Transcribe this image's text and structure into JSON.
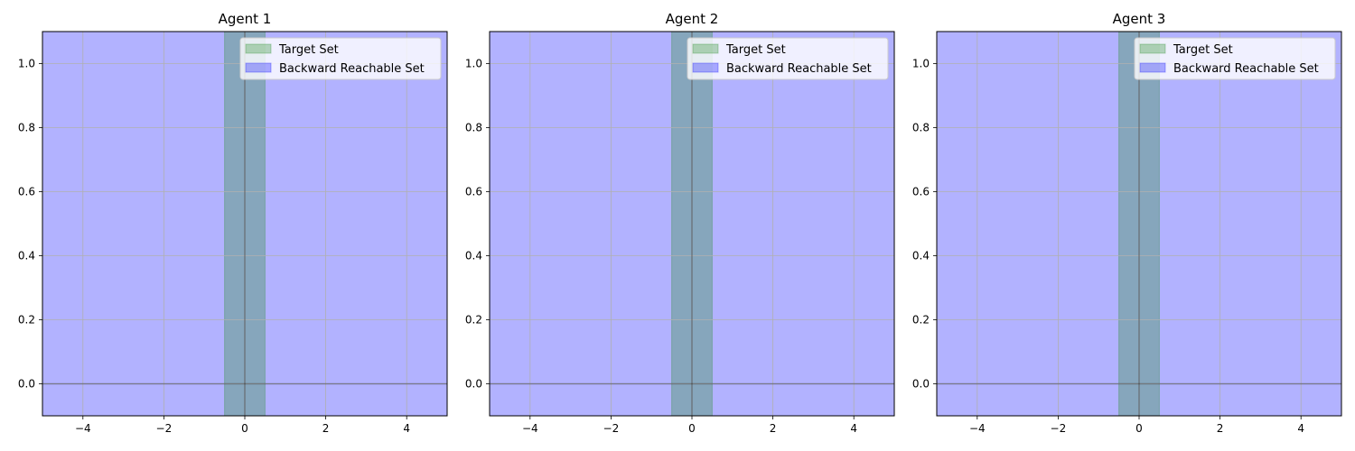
{
  "chart_data": [
    {
      "type": "area",
      "title": "Agent 1",
      "xlabel": "",
      "ylabel": "",
      "xlim": [
        -5,
        5
      ],
      "ylim": [
        -0.1,
        1.1
      ],
      "xticks": [
        -4,
        -2,
        0,
        2,
        4
      ],
      "xtick_labels": [
        "−4",
        "−2",
        "0",
        "2",
        "4"
      ],
      "yticks": [
        0.0,
        0.2,
        0.4,
        0.6,
        0.8,
        1.0
      ],
      "ytick_labels": [
        "0.0",
        "0.2",
        "0.4",
        "0.6",
        "0.8",
        "1.0"
      ],
      "grid": true,
      "reference_lines": {
        "x": 0,
        "y": 0
      },
      "legend_position": "top-right",
      "series": [
        {
          "name": "Target Set",
          "color": "#228b22",
          "x_range": [
            -0.5,
            0.5
          ],
          "y_range": [
            -0.1,
            1.1
          ]
        },
        {
          "name": "Backward Reachable Set",
          "color": "#0000ff",
          "x_range": [
            -5,
            5
          ],
          "y_range": [
            -0.1,
            1.1
          ]
        }
      ]
    },
    {
      "type": "area",
      "title": "Agent 2",
      "xlabel": "",
      "ylabel": "",
      "xlim": [
        -5,
        5
      ],
      "ylim": [
        -0.1,
        1.1
      ],
      "xticks": [
        -4,
        -2,
        0,
        2,
        4
      ],
      "xtick_labels": [
        "−4",
        "−2",
        "0",
        "2",
        "4"
      ],
      "yticks": [
        0.0,
        0.2,
        0.4,
        0.6,
        0.8,
        1.0
      ],
      "ytick_labels": [
        "0.0",
        "0.2",
        "0.4",
        "0.6",
        "0.8",
        "1.0"
      ],
      "grid": true,
      "reference_lines": {
        "x": 0,
        "y": 0
      },
      "legend_position": "top-right",
      "series": [
        {
          "name": "Target Set",
          "color": "#228b22",
          "x_range": [
            -0.5,
            0.5
          ],
          "y_range": [
            -0.1,
            1.1
          ]
        },
        {
          "name": "Backward Reachable Set",
          "color": "#0000ff",
          "x_range": [
            -5,
            5
          ],
          "y_range": [
            -0.1,
            1.1
          ]
        }
      ]
    },
    {
      "type": "area",
      "title": "Agent 3",
      "xlabel": "",
      "ylabel": "",
      "xlim": [
        -5,
        5
      ],
      "ylim": [
        -0.1,
        1.1
      ],
      "xticks": [
        -4,
        -2,
        0,
        2,
        4
      ],
      "xtick_labels": [
        "−4",
        "−2",
        "0",
        "2",
        "4"
      ],
      "yticks": [
        0.0,
        0.2,
        0.4,
        0.6,
        0.8,
        1.0
      ],
      "ytick_labels": [
        "0.0",
        "0.2",
        "0.4",
        "0.6",
        "0.8",
        "1.0"
      ],
      "grid": true,
      "reference_lines": {
        "x": 0,
        "y": 0
      },
      "legend_position": "top-right",
      "series": [
        {
          "name": "Target Set",
          "color": "#228b22",
          "x_range": [
            -0.5,
            0.5
          ],
          "y_range": [
            -0.1,
            1.1
          ]
        },
        {
          "name": "Backward Reachable Set",
          "color": "#0000ff",
          "x_range": [
            -5,
            5
          ],
          "y_range": [
            -0.1,
            1.1
          ]
        }
      ]
    }
  ]
}
